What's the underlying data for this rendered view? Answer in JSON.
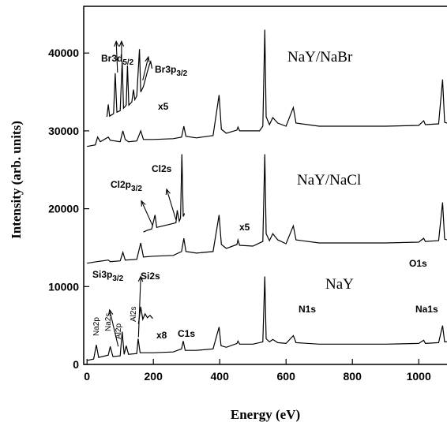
{
  "chart_data": {
    "type": "line",
    "xlabel": "Energy (eV)",
    "ylabel": "Intensity (arb. units)",
    "xlim": [
      -10,
      1090
    ],
    "ylim": [
      0,
      46000
    ],
    "xticks": [
      0,
      200,
      400,
      600,
      800,
      1000
    ],
    "yticks": [
      0,
      10000,
      20000,
      30000,
      40000
    ],
    "grid": false,
    "baselines": [
      500,
      13000,
      28000
    ],
    "series": [
      {
        "name": "NaY/NaBr",
        "points": [
          [
            0,
            28000
          ],
          [
            25,
            28200
          ],
          [
            32,
            29200
          ],
          [
            40,
            28600
          ],
          [
            64,
            29200
          ],
          [
            70,
            28800
          ],
          [
            100,
            28600
          ],
          [
            108,
            30000
          ],
          [
            115,
            28900
          ],
          [
            125,
            28600
          ],
          [
            150,
            28700
          ],
          [
            162,
            30000
          ],
          [
            170,
            28900
          ],
          [
            200,
            28900
          ],
          [
            260,
            29000
          ],
          [
            285,
            29200
          ],
          [
            292,
            30600
          ],
          [
            298,
            29300
          ],
          [
            330,
            29100
          ],
          [
            380,
            29400
          ],
          [
            398,
            34600
          ],
          [
            405,
            30200
          ],
          [
            420,
            29700
          ],
          [
            452,
            30100
          ],
          [
            455,
            30500
          ],
          [
            460,
            30000
          ],
          [
            500,
            30000
          ],
          [
            520,
            30000
          ],
          [
            530,
            30600
          ],
          [
            536,
            43000
          ],
          [
            540,
            31800
          ],
          [
            550,
            30800
          ],
          [
            560,
            31700
          ],
          [
            575,
            31000
          ],
          [
            600,
            30600
          ],
          [
            622,
            33000
          ],
          [
            630,
            31000
          ],
          [
            700,
            30600
          ],
          [
            800,
            30600
          ],
          [
            900,
            30600
          ],
          [
            1000,
            30700
          ],
          [
            1015,
            31300
          ],
          [
            1020,
            30800
          ],
          [
            1060,
            30900
          ],
          [
            1072,
            36600
          ],
          [
            1078,
            31100
          ],
          [
            1085,
            31000
          ]
        ]
      },
      {
        "name": "NaY/NaCl",
        "points": [
          [
            0,
            13000
          ],
          [
            30,
            13200
          ],
          [
            64,
            13400
          ],
          [
            70,
            13200
          ],
          [
            100,
            13300
          ],
          [
            108,
            14400
          ],
          [
            115,
            13400
          ],
          [
            150,
            13500
          ],
          [
            162,
            15600
          ],
          [
            170,
            13800
          ],
          [
            200,
            13900
          ],
          [
            260,
            14000
          ],
          [
            285,
            14500
          ],
          [
            292,
            16200
          ],
          [
            298,
            14500
          ],
          [
            330,
            14300
          ],
          [
            380,
            14500
          ],
          [
            398,
            19200
          ],
          [
            405,
            15400
          ],
          [
            420,
            14900
          ],
          [
            452,
            15400
          ],
          [
            455,
            16000
          ],
          [
            460,
            15300
          ],
          [
            500,
            15200
          ],
          [
            530,
            15800
          ],
          [
            536,
            27000
          ],
          [
            540,
            16800
          ],
          [
            550,
            15900
          ],
          [
            560,
            16800
          ],
          [
            575,
            16000
          ],
          [
            600,
            15500
          ],
          [
            622,
            17800
          ],
          [
            630,
            16000
          ],
          [
            700,
            15600
          ],
          [
            800,
            15600
          ],
          [
            900,
            15600
          ],
          [
            1000,
            15700
          ],
          [
            1015,
            16200
          ],
          [
            1020,
            15800
          ],
          [
            1060,
            15900
          ],
          [
            1072,
            20800
          ],
          [
            1078,
            16100
          ],
          [
            1085,
            16000
          ]
        ]
      },
      {
        "name": "NaY",
        "points": [
          [
            0,
            500
          ],
          [
            20,
            700
          ],
          [
            28,
            2500
          ],
          [
            35,
            900
          ],
          [
            64,
            1200
          ],
          [
            70,
            2300
          ],
          [
            78,
            1000
          ],
          [
            100,
            1100
          ],
          [
            106,
            4200
          ],
          [
            112,
            1300
          ],
          [
            118,
            2400
          ],
          [
            125,
            1300
          ],
          [
            150,
            1400
          ],
          [
            154,
            3300
          ],
          [
            160,
            1500
          ],
          [
            200,
            1500
          ],
          [
            260,
            1600
          ],
          [
            285,
            2000
          ],
          [
            290,
            3000
          ],
          [
            296,
            1800
          ],
          [
            330,
            1800
          ],
          [
            380,
            2000
          ],
          [
            398,
            4800
          ],
          [
            404,
            2400
          ],
          [
            420,
            2200
          ],
          [
            452,
            2700
          ],
          [
            455,
            3000
          ],
          [
            460,
            2600
          ],
          [
            500,
            2600
          ],
          [
            530,
            2900
          ],
          [
            536,
            11300
          ],
          [
            540,
            3300
          ],
          [
            550,
            2900
          ],
          [
            560,
            3200
          ],
          [
            575,
            2800
          ],
          [
            600,
            2700
          ],
          [
            622,
            3700
          ],
          [
            630,
            2800
          ],
          [
            700,
            2600
          ],
          [
            800,
            2600
          ],
          [
            900,
            2600
          ],
          [
            1000,
            2700
          ],
          [
            1015,
            3100
          ],
          [
            1020,
            2700
          ],
          [
            1060,
            2800
          ],
          [
            1072,
            5000
          ],
          [
            1078,
            2900
          ],
          [
            1085,
            2900
          ]
        ]
      }
    ],
    "insets": [
      {
        "name": "NaY/NaBr x5",
        "points": [
          [
            60,
            31800
          ],
          [
            64,
            33400
          ],
          [
            68,
            31900
          ],
          [
            80,
            32200
          ],
          [
            85,
            37400
          ],
          [
            90,
            32400
          ],
          [
            100,
            32600
          ],
          [
            106,
            39000
          ],
          [
            110,
            32900
          ],
          [
            118,
            33300
          ],
          [
            122,
            38400
          ],
          [
            126,
            33300
          ],
          [
            135,
            33700
          ],
          [
            140,
            35300
          ],
          [
            144,
            34000
          ],
          [
            150,
            34500
          ],
          [
            158,
            40500
          ],
          [
            162,
            35000
          ],
          [
            170,
            35700
          ],
          [
            180,
            37300
          ],
          [
            188,
            38500
          ],
          [
            192,
            38900
          ],
          [
            196,
            38000
          ]
        ]
      },
      {
        "name": "NaY/NaCl x5",
        "points": [
          [
            170,
            17000
          ],
          [
            180,
            17200
          ],
          [
            195,
            17400
          ],
          [
            205,
            19200
          ],
          [
            210,
            17600
          ],
          [
            230,
            17800
          ],
          [
            250,
            18000
          ],
          [
            268,
            18200
          ],
          [
            272,
            19800
          ],
          [
            278,
            18400
          ],
          [
            282,
            18800
          ],
          [
            286,
            27000
          ],
          [
            290,
            19000
          ],
          [
            294,
            19400
          ]
        ]
      },
      {
        "name": "NaY x8",
        "points": [
          [
            155,
            5200
          ],
          [
            162,
            7400
          ],
          [
            168,
            5800
          ],
          [
            175,
            6500
          ],
          [
            182,
            6000
          ],
          [
            190,
            6300
          ],
          [
            198,
            5900
          ]
        ]
      }
    ],
    "series_labels": [
      "NaY/NaBr",
      "NaY/NaCl",
      "NaY"
    ],
    "annotations": {
      "br3d": "Br3d",
      "br3d_sub": "5/2",
      "br3p": "Br3p",
      "br3p_sub": "3/2",
      "x5_br": "x5",
      "cl2p": "Cl2p",
      "cl2p_sub": "3/2",
      "cl2s": "Cl2s",
      "x5_cl": "x5",
      "si3p": "Si3p",
      "si3p_sub": "3/2",
      "si2s": "Si2s",
      "na2p": "Na2p",
      "na2s": "Na2s",
      "al2p": "Al2p",
      "al2s": "Al2s",
      "x8": "x8",
      "c1s": "C1s",
      "n1s": "N1s",
      "o1s": "O1s",
      "na1s": "Na1s"
    }
  }
}
